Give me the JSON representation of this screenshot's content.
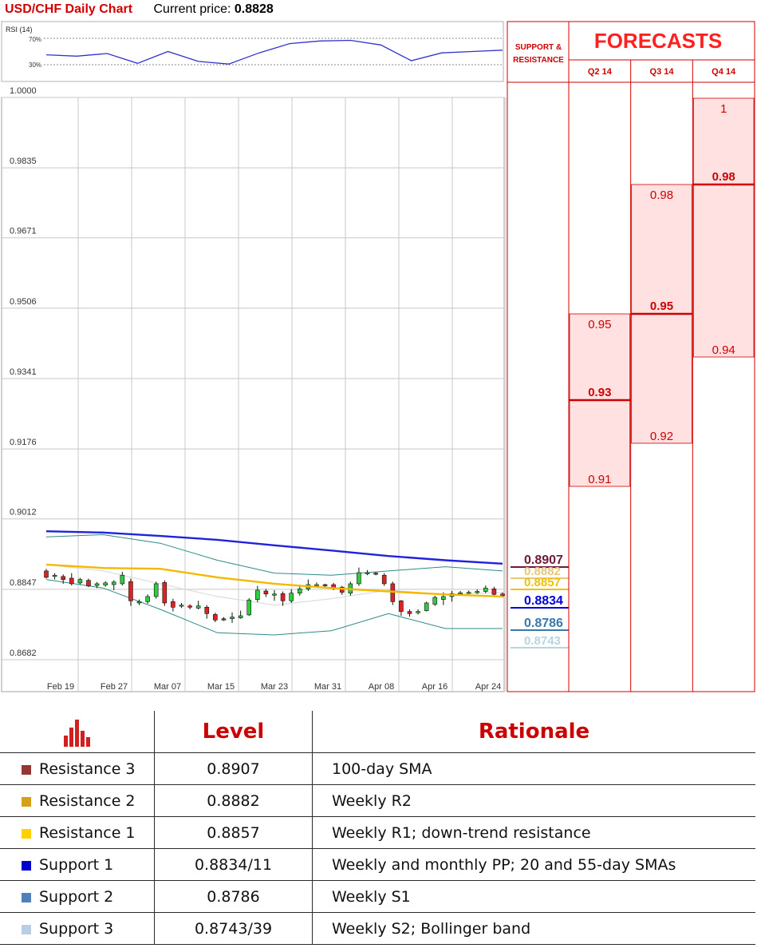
{
  "header": {
    "title": "USD/CHF Daily Chart",
    "price_label": "Current price:",
    "price_value": "0.8828"
  },
  "rsi_panel": {
    "label": "RSI (14)",
    "levels": [
      "70%",
      "30%"
    ]
  },
  "forecast_panel": {
    "title": "FORECASTS",
    "support_label_line1": "SUPPORT &",
    "support_label_line2": "RESISTANCE",
    "quarters": [
      {
        "label": "Q2 14",
        "high": 0.95,
        "mid": 0.93,
        "low": 0.91,
        "high_text": "0.95",
        "mid_text": "0.93",
        "low_text": "0.91"
      },
      {
        "label": "Q3 14",
        "high": 0.98,
        "mid": 0.95,
        "low": 0.92,
        "high_text": "0.98",
        "mid_text": "0.95",
        "low_text": "0.92"
      },
      {
        "label": "Q4 14",
        "high": 1.0,
        "mid": 0.98,
        "low": 0.94,
        "high_text": "1",
        "mid_text": "0.98",
        "low_text": "0.94"
      }
    ]
  },
  "colors": {
    "accent": "#d00000",
    "sma200": "#2222dd",
    "sma55": "#f5b800",
    "bollinger": "#2e8b86",
    "sma20": "#dddddd",
    "bull": "#2ecc40",
    "bear": "#dd2222"
  },
  "chart_data": {
    "type": "candlestick",
    "title": "USD/CHF Daily Chart",
    "ylim": [
      0.8682,
      1.0
    ],
    "y_ticks": [
      1.0,
      0.9835,
      0.9671,
      0.9506,
      0.9341,
      0.9176,
      0.9012,
      0.8847,
      0.8682
    ],
    "y_tick_labels": [
      "1.0000",
      "0.9835",
      "0.9671",
      "0.9506",
      "0.9341",
      "0.9176",
      "0.9012",
      "0.8847",
      "0.8682"
    ],
    "x_tick_labels": [
      "Feb 19",
      "Feb 27",
      "Mar 07",
      "Mar 15",
      "Mar 23",
      "Mar 31",
      "Apr 08",
      "Apr 16",
      "Apr 24"
    ],
    "candles": [
      [
        0.889,
        0.8875,
        0.8895,
        0.8872
      ],
      [
        0.8878,
        0.888,
        0.8885,
        0.887
      ],
      [
        0.8877,
        0.887,
        0.8882,
        0.886
      ],
      [
        0.8873,
        0.886,
        0.8885,
        0.8856
      ],
      [
        0.8862,
        0.887,
        0.8874,
        0.8858
      ],
      [
        0.8868,
        0.8855,
        0.8872,
        0.8852
      ],
      [
        0.8856,
        0.886,
        0.8864,
        0.885
      ],
      [
        0.8857,
        0.8862,
        0.8866,
        0.8853
      ],
      [
        0.8858,
        0.8864,
        0.8868,
        0.8845
      ],
      [
        0.886,
        0.888,
        0.8888,
        0.8856
      ],
      [
        0.8865,
        0.882,
        0.8872,
        0.8808
      ],
      [
        0.8815,
        0.8818,
        0.8823,
        0.881
      ],
      [
        0.8818,
        0.883,
        0.8835,
        0.8813
      ],
      [
        0.883,
        0.886,
        0.8865,
        0.8825
      ],
      [
        0.8863,
        0.8815,
        0.8868,
        0.8808
      ],
      [
        0.8818,
        0.8805,
        0.8825,
        0.8795
      ],
      [
        0.8808,
        0.881,
        0.8815,
        0.8803
      ],
      [
        0.8808,
        0.8805,
        0.8812,
        0.88
      ],
      [
        0.8803,
        0.8808,
        0.882,
        0.88
      ],
      [
        0.8805,
        0.879,
        0.881,
        0.8778
      ],
      [
        0.8788,
        0.8775,
        0.8792,
        0.877
      ],
      [
        0.8778,
        0.8775,
        0.8782,
        0.8773
      ],
      [
        0.8778,
        0.8782,
        0.8793,
        0.8768
      ],
      [
        0.878,
        0.8785,
        0.8797,
        0.8778
      ],
      [
        0.8787,
        0.8822,
        0.8826,
        0.8785
      ],
      [
        0.8823,
        0.8845,
        0.8855,
        0.8817
      ],
      [
        0.8843,
        0.8836,
        0.8848,
        0.8829
      ],
      [
        0.8836,
        0.8836,
        0.8845,
        0.882
      ],
      [
        0.8837,
        0.882,
        0.8842,
        0.8808
      ],
      [
        0.882,
        0.8838,
        0.8847,
        0.8815
      ],
      [
        0.8838,
        0.8848,
        0.8854,
        0.8832
      ],
      [
        0.8848,
        0.8858,
        0.887,
        0.8843
      ],
      [
        0.8858,
        0.8858,
        0.8863,
        0.8852
      ],
      [
        0.8858,
        0.8856,
        0.886,
        0.8852
      ],
      [
        0.8858,
        0.885,
        0.8862,
        0.8845
      ],
      [
        0.8852,
        0.884,
        0.8855,
        0.8834
      ],
      [
        0.8838,
        0.886,
        0.8865,
        0.8832
      ],
      [
        0.886,
        0.8886,
        0.8898,
        0.8855
      ],
      [
        0.8886,
        0.8886,
        0.8892,
        0.888
      ],
      [
        0.8885,
        0.8884,
        0.8888,
        0.888
      ],
      [
        0.888,
        0.886,
        0.8885,
        0.8855
      ],
      [
        0.886,
        0.8818,
        0.8865,
        0.881
      ],
      [
        0.882,
        0.8795,
        0.8822,
        0.8785
      ],
      [
        0.8795,
        0.879,
        0.88,
        0.8783
      ],
      [
        0.8792,
        0.8795,
        0.88,
        0.8788
      ],
      [
        0.8797,
        0.8815,
        0.8818,
        0.8795
      ],
      [
        0.8812,
        0.8828,
        0.8832,
        0.8808
      ],
      [
        0.8823,
        0.883,
        0.884,
        0.881
      ],
      [
        0.883,
        0.8837,
        0.8843,
        0.8818
      ],
      [
        0.8837,
        0.8839,
        0.8843,
        0.8833
      ],
      [
        0.8839,
        0.884,
        0.8844,
        0.8836
      ],
      [
        0.884,
        0.8842,
        0.8847,
        0.8836
      ],
      [
        0.8842,
        0.885,
        0.8856,
        0.8838
      ],
      [
        0.8848,
        0.8835,
        0.8853,
        0.8833
      ],
      [
        0.8836,
        0.8832,
        0.884,
        0.8828
      ]
    ],
    "sma200": [
      0.8983,
      0.898,
      0.8972,
      0.8963,
      0.895,
      0.8938,
      0.8925,
      0.8915,
      0.8907
    ],
    "sma55": [
      0.8905,
      0.8897,
      0.8895,
      0.8875,
      0.886,
      0.885,
      0.8842,
      0.8835,
      0.883
    ],
    "sma20": [
      0.8905,
      0.889,
      0.886,
      0.883,
      0.881,
      0.8825,
      0.8845,
      0.8835,
      0.884
    ],
    "bollinger_upper": [
      0.897,
      0.8975,
      0.8955,
      0.8915,
      0.8885,
      0.888,
      0.889,
      0.89,
      0.889
    ],
    "bollinger_lower": [
      0.887,
      0.885,
      0.88,
      0.8745,
      0.874,
      0.875,
      0.879,
      0.8755,
      0.8755
    ],
    "rsi": [
      45,
      43,
      47,
      32,
      50,
      35,
      31,
      48,
      62,
      66,
      67,
      60,
      36,
      48,
      50,
      52
    ]
  },
  "levels": [
    {
      "value": "0.8907",
      "color": "#6e1a3a"
    },
    {
      "value": "0.8882",
      "color": "#e8c77a"
    },
    {
      "value": "0.8857",
      "color": "#f0c000"
    },
    {
      "value": "0.8834",
      "color": "#0000dd"
    },
    {
      "value": "0.8786",
      "color": "#3a78a8"
    },
    {
      "value": "0.8743",
      "color": "#b8d4e0"
    }
  ],
  "table": {
    "headers": {
      "level": "Level",
      "rationale": "Rationale"
    },
    "rows": [
      {
        "name": "Resistance 3",
        "level": "0.8907",
        "rationale": "100-day SMA",
        "color": "#943634"
      },
      {
        "name": "Resistance 2",
        "level": "0.8882",
        "rationale": "Weekly R2",
        "color": "#d4a017"
      },
      {
        "name": "Resistance 1",
        "level": "0.8857",
        "rationale": "Weekly R1; down-trend resistance",
        "color": "#ffd000"
      },
      {
        "name": "Support 1",
        "level": "0.8834/11",
        "rationale": "Weekly and monthly PP; 20 and 55-day SMAs",
        "color": "#0000cc"
      },
      {
        "name": "Support 2",
        "level": "0.8786",
        "rationale": "Weekly S1",
        "color": "#4f81bd"
      },
      {
        "name": "Support 3",
        "level": "0.8743/39",
        "rationale": "Weekly S2; Bollinger band",
        "color": "#b9cde5"
      }
    ]
  }
}
